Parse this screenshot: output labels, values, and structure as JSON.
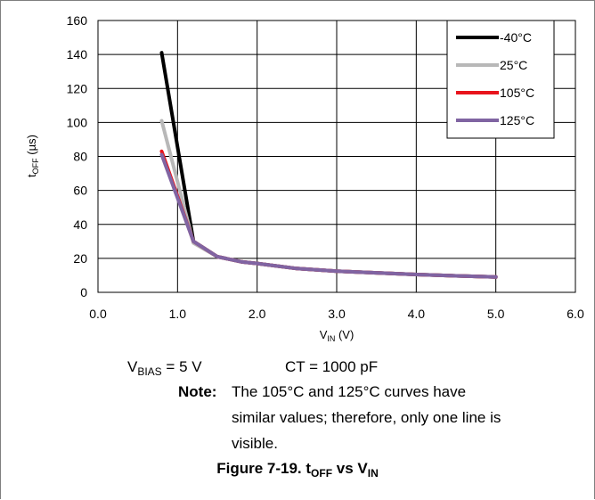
{
  "chart_data": {
    "type": "line",
    "xlabel": "V_IN (V)",
    "ylabel": "t_OFF (µs)",
    "xlim": [
      0,
      6
    ],
    "ylim": [
      0,
      160
    ],
    "x_ticks": [
      "0.0",
      "1.0",
      "2.0",
      "3.0",
      "4.0",
      "5.0",
      "6.0"
    ],
    "y_ticks": [
      "0",
      "20",
      "40",
      "60",
      "80",
      "100",
      "120",
      "140",
      "160"
    ],
    "grid": true,
    "legend": "top-right",
    "series": [
      {
        "name": "-40°C",
        "color": "#000000",
        "x": [
          0.8,
          1.2,
          1.5,
          1.8,
          2.0,
          2.5,
          3.0,
          3.5,
          4.0,
          4.5,
          5.0
        ],
        "y": [
          141,
          30,
          21,
          18,
          17,
          14,
          12.5,
          11.5,
          10.5,
          9.7,
          9
        ]
      },
      {
        "name": "25°C",
        "color": "#b8b8b8",
        "x": [
          0.8,
          1.2,
          1.5,
          1.8,
          2.0,
          2.5,
          3.0,
          3.5,
          4.0,
          4.5,
          5.0
        ],
        "y": [
          101,
          29,
          21,
          18,
          17,
          14,
          12.5,
          11.5,
          10.5,
          9.7,
          9
        ]
      },
      {
        "name": "105°C",
        "color": "#e8141c",
        "x": [
          0.8,
          1.2,
          1.5,
          1.8,
          2.0,
          2.5,
          3.0,
          3.5,
          4.0,
          4.5,
          5.0
        ],
        "y": [
          83,
          30,
          21,
          18,
          17,
          14,
          12.5,
          11.5,
          10.5,
          9.7,
          9
        ]
      },
      {
        "name": "125°C",
        "color": "#8064a2",
        "x": [
          0.8,
          1.2,
          1.5,
          1.8,
          2.0,
          2.5,
          3.0,
          3.5,
          4.0,
          4.5,
          5.0
        ],
        "y": [
          81,
          30,
          21,
          18,
          17,
          14,
          12.5,
          11.5,
          10.5,
          9.7,
          9
        ]
      }
    ]
  },
  "conditions": {
    "vbias_main": "V",
    "vbias_sub": "BIAS",
    "vbias_value": " = 5 V",
    "ct": "CT = 1000 pF"
  },
  "note": {
    "label": "Note:",
    "lines": [
      "The 105°C and 125°C curves have",
      "similar values; therefore, only one line is",
      "visible."
    ]
  },
  "caption": {
    "prefix": "Figure 7-19. t",
    "sub1": "OFF",
    "mid": " vs V",
    "sub2": "IN"
  }
}
